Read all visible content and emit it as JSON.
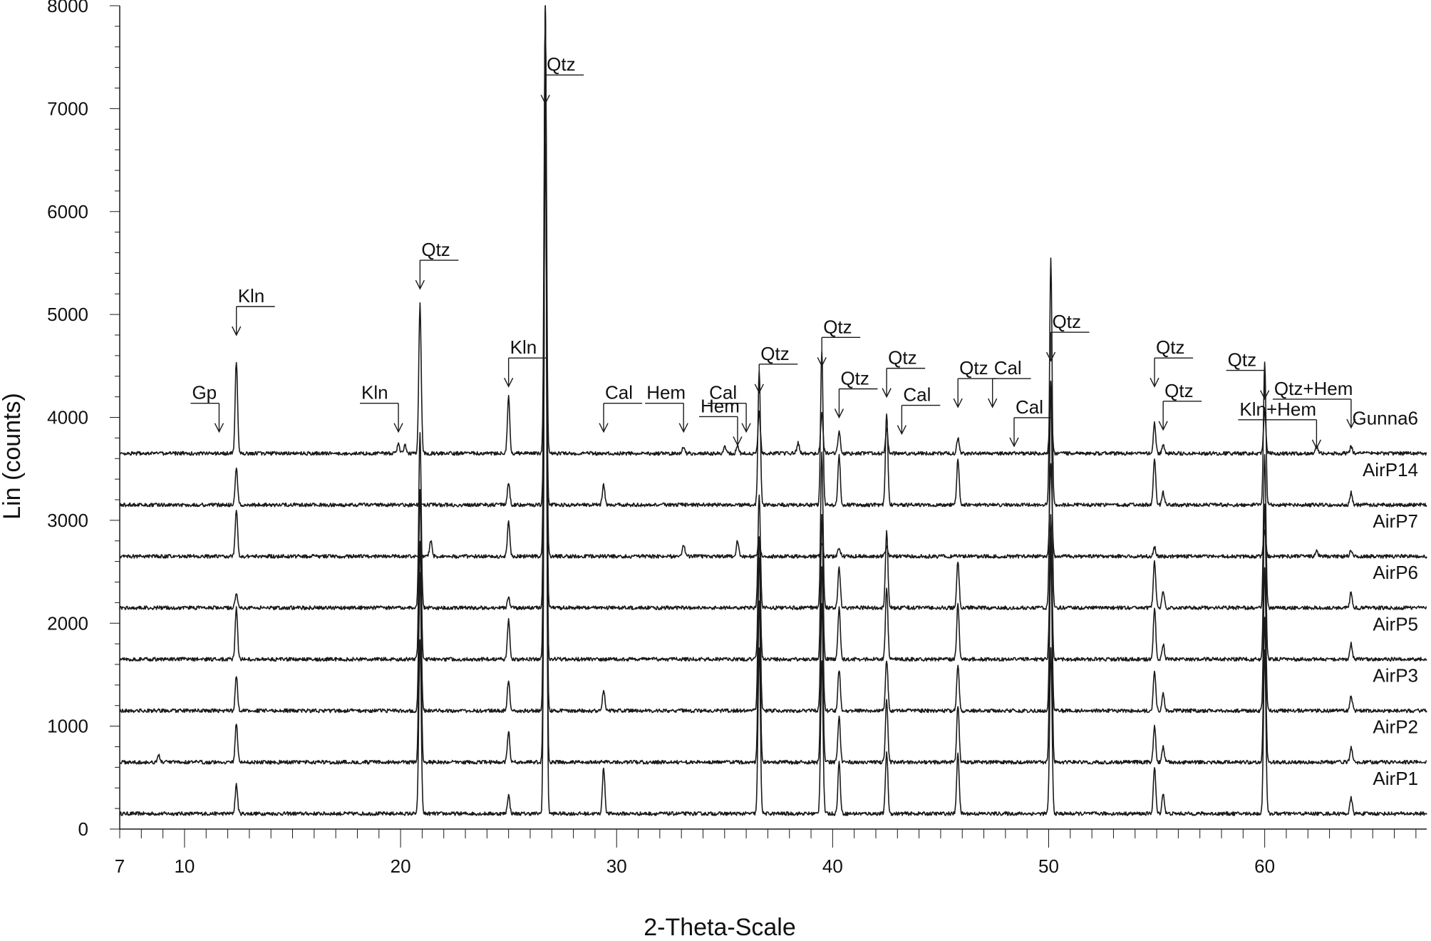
{
  "chart_data": {
    "type": "line",
    "xlabel": "2-Theta-Scale",
    "ylabel": "Lin (counts)",
    "xlim": [
      7,
      67.5
    ],
    "ylim": [
      0,
      8000
    ],
    "y_ticks": [
      0,
      1000,
      2000,
      3000,
      4000,
      5000,
      6000,
      7000,
      8000
    ],
    "y_tick_labels": [
      "0",
      "1000",
      "2000",
      "3000",
      "4000",
      "5000",
      "6000",
      "7000",
      "8000"
    ],
    "x_ticks": [
      7,
      10,
      20,
      30,
      40,
      50,
      60
    ],
    "x_tick_labels": [
      "7",
      "10",
      "20",
      "30",
      "40",
      "50",
      "60"
    ],
    "grid": false,
    "line_color": "#1a1a1a",
    "series": [
      {
        "name": "AirP1",
        "baseline": 150,
        "peaks": [
          [
            12.4,
            280
          ],
          [
            20.9,
            1700
          ],
          [
            25.0,
            180
          ],
          [
            26.7,
            7900
          ],
          [
            29.4,
            450
          ],
          [
            36.6,
            1600
          ],
          [
            39.5,
            1500
          ],
          [
            40.3,
            500
          ],
          [
            42.5,
            600
          ],
          [
            45.8,
            600
          ],
          [
            50.1,
            1600
          ],
          [
            54.9,
            450
          ],
          [
            55.3,
            200
          ],
          [
            60.0,
            1600
          ],
          [
            64.0,
            150
          ]
        ]
      },
      {
        "name": "AirP2",
        "baseline": 650,
        "peaks": [
          [
            8.8,
            70
          ],
          [
            12.4,
            380
          ],
          [
            20.9,
            1850
          ],
          [
            25.0,
            300
          ],
          [
            26.7,
            7100
          ],
          [
            36.6,
            1550
          ],
          [
            39.5,
            1550
          ],
          [
            40.3,
            450
          ],
          [
            42.5,
            600
          ],
          [
            45.8,
            550
          ],
          [
            50.1,
            2100
          ],
          [
            54.9,
            350
          ],
          [
            55.3,
            150
          ],
          [
            60.0,
            1400
          ],
          [
            64.0,
            150
          ]
        ]
      },
      {
        "name": "AirP3",
        "baseline": 1150,
        "peaks": [
          [
            12.4,
            330
          ],
          [
            20.9,
            1650
          ],
          [
            25.0,
            300
          ],
          [
            26.7,
            6800
          ],
          [
            29.4,
            200
          ],
          [
            36.6,
            1500
          ],
          [
            39.5,
            1400
          ],
          [
            40.3,
            400
          ],
          [
            42.5,
            500
          ],
          [
            45.8,
            450
          ],
          [
            50.1,
            1700
          ],
          [
            54.9,
            400
          ],
          [
            55.3,
            180
          ],
          [
            60.0,
            1400
          ],
          [
            64.0,
            150
          ]
        ]
      },
      {
        "name": "AirP5",
        "baseline": 1650,
        "peaks": [
          [
            12.4,
            500
          ],
          [
            20.9,
            1650
          ],
          [
            25.0,
            380
          ],
          [
            26.7,
            6400
          ],
          [
            36.6,
            1200
          ],
          [
            39.5,
            1400
          ],
          [
            40.3,
            500
          ],
          [
            42.5,
            700
          ],
          [
            45.8,
            550
          ],
          [
            50.1,
            1400
          ],
          [
            54.9,
            500
          ],
          [
            55.3,
            150
          ],
          [
            60.0,
            1500
          ],
          [
            64.0,
            150
          ]
        ]
      },
      {
        "name": "AirP6",
        "baseline": 2150,
        "peaks": [
          [
            12.4,
            150
          ],
          [
            20.9,
            1700
          ],
          [
            25.0,
            100
          ],
          [
            26.7,
            5900
          ],
          [
            36.6,
            1100
          ],
          [
            39.5,
            1500
          ],
          [
            40.3,
            400
          ],
          [
            42.5,
            750
          ],
          [
            45.8,
            450
          ],
          [
            50.1,
            2200
          ],
          [
            54.9,
            450
          ],
          [
            55.3,
            150
          ],
          [
            60.0,
            1500
          ],
          [
            64.0,
            150
          ]
        ]
      },
      {
        "name": "AirP7",
        "baseline": 2650,
        "peaks": [
          [
            12.4,
            450
          ],
          [
            21.4,
            150
          ],
          [
            25.0,
            350
          ],
          [
            26.7,
            5300
          ],
          [
            33.1,
            120
          ],
          [
            35.6,
            150
          ],
          [
            36.6,
            150
          ],
          [
            39.5,
            130
          ],
          [
            40.3,
            90
          ],
          [
            42.5,
            90
          ],
          [
            50.1,
            900
          ],
          [
            54.9,
            90
          ],
          [
            60.0,
            250
          ],
          [
            62.4,
            60
          ],
          [
            64.0,
            60
          ]
        ]
      },
      {
        "name": "AirP14",
        "baseline": 3150,
        "peaks": [
          [
            12.4,
            350
          ],
          [
            25.0,
            220
          ],
          [
            26.7,
            3500
          ],
          [
            29.4,
            200
          ],
          [
            36.6,
            1300
          ],
          [
            39.5,
            1500
          ],
          [
            40.3,
            480
          ],
          [
            42.5,
            900
          ],
          [
            45.8,
            450
          ],
          [
            50.1,
            2400
          ],
          [
            54.9,
            450
          ],
          [
            55.3,
            120
          ],
          [
            60.0,
            1400
          ],
          [
            64.0,
            120
          ]
        ]
      },
      {
        "name": "Gunna6",
        "baseline": 3650,
        "peaks": [
          [
            12.4,
            900
          ],
          [
            19.9,
            100
          ],
          [
            20.2,
            80
          ],
          [
            20.9,
            1450
          ],
          [
            25.0,
            550
          ],
          [
            26.7,
            4300
          ],
          [
            33.1,
            60
          ],
          [
            35.0,
            70
          ],
          [
            35.6,
            80
          ],
          [
            36.6,
            400
          ],
          [
            38.4,
            100
          ],
          [
            39.5,
            400
          ],
          [
            40.3,
            220
          ],
          [
            42.5,
            250
          ],
          [
            45.8,
            150
          ],
          [
            50.1,
            700
          ],
          [
            54.9,
            300
          ],
          [
            55.3,
            80
          ],
          [
            60.0,
            400
          ],
          [
            62.4,
            70
          ],
          [
            64.0,
            70
          ]
        ]
      }
    ],
    "annotations": [
      {
        "text": "Gp",
        "x": 11.6,
        "y": 3860,
        "dir": "left"
      },
      {
        "text": "Kln",
        "x": 12.4,
        "y": 4800,
        "dir": "right"
      },
      {
        "text": "Kln",
        "x": 19.9,
        "y": 3860,
        "dir": "left"
      },
      {
        "text": "Qtz",
        "x": 20.9,
        "y": 5250,
        "dir": "right"
      },
      {
        "text": "Kln",
        "x": 25.0,
        "y": 4300,
        "dir": "right"
      },
      {
        "text": "Qtz",
        "x": 26.7,
        "y": 7050,
        "dir": "right"
      },
      {
        "text": "Cal",
        "x": 29.4,
        "y": 3860,
        "dir": "right"
      },
      {
        "text": "Hem",
        "x": 33.1,
        "y": 3860,
        "dir": "left"
      },
      {
        "text": "Hem",
        "x": 35.6,
        "y": 3730,
        "dir": "left"
      },
      {
        "text": "Cal",
        "x": 36.0,
        "y": 3860,
        "dir": "left"
      },
      {
        "text": "Qtz",
        "x": 36.6,
        "y": 4240,
        "dir": "right"
      },
      {
        "text": "Qtz",
        "x": 39.5,
        "y": 4500,
        "dir": "right"
      },
      {
        "text": "Qtz",
        "x": 40.3,
        "y": 4000,
        "dir": "right"
      },
      {
        "text": "Qtz",
        "x": 42.5,
        "y": 4200,
        "dir": "right"
      },
      {
        "text": "Cal",
        "x": 43.2,
        "y": 3840,
        "dir": "right"
      },
      {
        "text": "Qtz",
        "x": 45.8,
        "y": 4100,
        "dir": "right"
      },
      {
        "text": "Cal",
        "x": 47.4,
        "y": 4100,
        "dir": "right"
      },
      {
        "text": "Cal",
        "x": 48.4,
        "y": 3720,
        "dir": "right"
      },
      {
        "text": "Qtz",
        "x": 50.1,
        "y": 4550,
        "dir": "right"
      },
      {
        "text": "Qtz",
        "x": 54.9,
        "y": 4300,
        "dir": "right"
      },
      {
        "text": "Qtz",
        "x": 55.3,
        "y": 3880,
        "dir": "right"
      },
      {
        "text": "Qtz",
        "x": 60.0,
        "y": 4180,
        "dir": "left"
      },
      {
        "text": "Qtz+Hem",
        "x": 64.0,
        "y": 3900,
        "dir": "left"
      },
      {
        "text": "Kln+Hem",
        "x": 62.4,
        "y": 3700,
        "dir": "left"
      }
    ]
  }
}
